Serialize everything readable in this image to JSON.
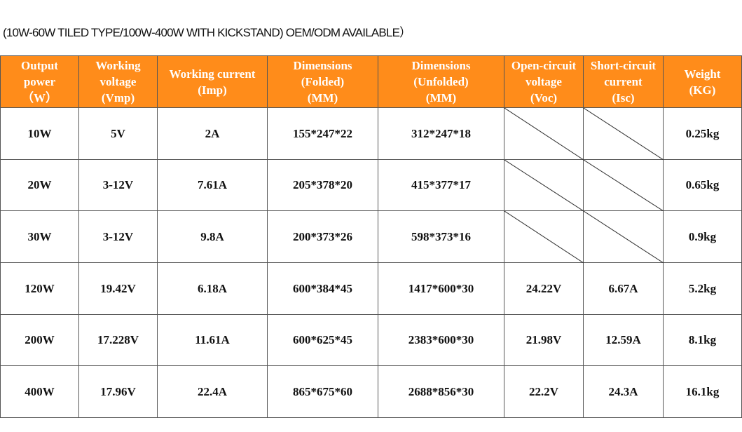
{
  "title": "(10W-60W TILED TYPE/100W-400W WITH KICKSTAND) OEM/ODM AVAILABLE）",
  "table": {
    "headers": [
      [
        "Output",
        "power",
        "（W）"
      ],
      [
        "Working",
        "voltage",
        "(Vmp)"
      ],
      [
        "Working current",
        "(Imp)"
      ],
      [
        "Dimensions",
        "(Folded)",
        "(MM)"
      ],
      [
        "Dimensions",
        "(Unfolded)",
        "(MM)"
      ],
      [
        "Open-circuit",
        "voltage",
        "(Voc)"
      ],
      [
        "Short-circuit",
        "current",
        "(Isc)"
      ],
      [
        "Weight",
        "(KG)"
      ]
    ],
    "rows": [
      [
        "10W",
        "5V",
        "2A",
        "155*247*22",
        "312*247*18",
        null,
        null,
        "0.25kg"
      ],
      [
        "20W",
        "3-12V",
        "7.61A",
        "205*378*20",
        "415*377*17",
        null,
        null,
        "0.65kg"
      ],
      [
        "30W",
        "3-12V",
        "9.8A",
        "200*373*26",
        "598*373*16",
        null,
        null,
        "0.9kg"
      ],
      [
        "120W",
        "19.42V",
        "6.18A",
        "600*384*45",
        "1417*600*30",
        "24.22V",
        "6.67A",
        "5.2kg"
      ],
      [
        "200W",
        "17.228V",
        "11.61A",
        "600*625*45",
        "2383*600*30",
        "21.98V",
        "12.59A",
        "8.1kg"
      ],
      [
        "400W",
        "17.96V",
        "22.4A",
        "865*675*60",
        "2688*856*30",
        "22.2V",
        "24.3A",
        "16.1kg"
      ]
    ]
  }
}
